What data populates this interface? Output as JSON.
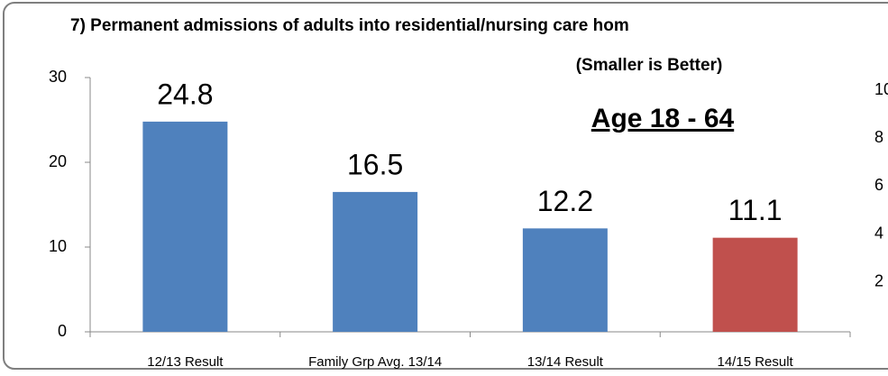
{
  "chart_data": {
    "type": "bar",
    "title": "7) Permanent admissions of adults into residential/nursing care hom",
    "subtitle": "(Smaller is Better)",
    "annotation": "Age 18 - 64",
    "categories": [
      "12/13  Result",
      "Family Grp Avg. 13/14",
      "13/14  Result",
      "14/15  Result"
    ],
    "values": [
      24.8,
      16.5,
      12.2,
      11.1
    ],
    "colors": [
      "#4f81bd",
      "#4f81bd",
      "#4f81bd",
      "#c0504d"
    ],
    "ylim": [
      0,
      30
    ],
    "yticks": [
      0,
      10,
      20,
      30
    ],
    "y2lim": [
      0,
      10
    ],
    "y2ticks": [
      2,
      4,
      6,
      8,
      10
    ],
    "grid": false
  }
}
